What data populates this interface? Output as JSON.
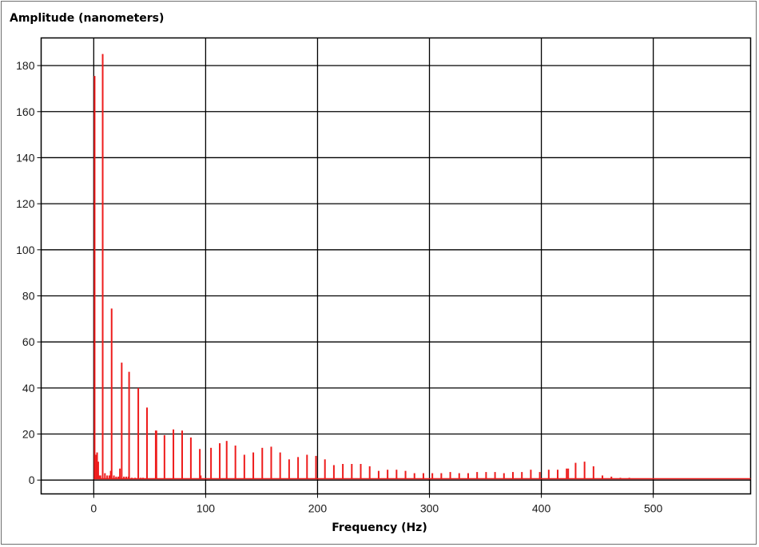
{
  "chart_data": {
    "type": "bar",
    "title": "",
    "xlabel": "Frequency (Hz)",
    "ylabel": "Amplitude (nanometers)",
    "xlim": [
      -47,
      587
    ],
    "ylim": [
      -6,
      192
    ],
    "x_ticks": [
      0,
      100,
      200,
      300,
      400,
      500
    ],
    "y_ticks": [
      0,
      20,
      40,
      60,
      80,
      100,
      120,
      140,
      160,
      180
    ],
    "grid": true,
    "color": "#ee1c1c",
    "baseline": 0.6,
    "series": [
      {
        "x": [
          0.8,
          2,
          3,
          4,
          5,
          6,
          8,
          10,
          12,
          14,
          15.2,
          16,
          18,
          20,
          22,
          23.4,
          25,
          27,
          29,
          31,
          31.6,
          34,
          37,
          39.8,
          42,
          44,
          47.6,
          55.4,
          56,
          63.2,
          71.2,
          79,
          86.8,
          94.8,
          95.6,
          104.8,
          112.6,
          118.8,
          126.6,
          134.6,
          142.6,
          150.6,
          158.6,
          166.6,
          174.6,
          182.6,
          190.6,
          198.6,
          206.6,
          214.6,
          222.6,
          230.6,
          238.6,
          246.6,
          254.6,
          262.6,
          270.6,
          278.6,
          286.6,
          294.6,
          302.6,
          310.6,
          318.6,
          326.6,
          334.6,
          342.6,
          350.6,
          358.6,
          366.6,
          374.6,
          382.6,
          390.6,
          398.6,
          406.6,
          414.6,
          422.6,
          424,
          430.6,
          438.6,
          446.6,
          454.6,
          462.6,
          470.6,
          478.6
        ],
        "values": [
          175.5,
          11,
          12,
          8,
          2,
          2,
          185,
          3,
          2,
          2,
          4,
          74.5,
          2,
          1.5,
          1.5,
          5,
          51,
          1.5,
          1.5,
          1.5,
          47,
          1,
          1,
          40,
          1,
          1,
          31.5,
          21.5,
          21.5,
          19.5,
          22,
          21.5,
          18.5,
          13.5,
          2,
          14,
          16,
          17,
          15,
          11,
          12,
          14,
          14.5,
          12,
          9,
          10,
          11,
          10.5,
          9,
          6.5,
          7,
          7,
          7,
          6,
          4,
          4.5,
          4.5,
          4,
          3,
          3,
          3,
          3,
          3.5,
          3,
          3,
          3.5,
          3.5,
          3.5,
          3,
          3.5,
          3.5,
          4.5,
          3.5,
          4.5,
          4.5,
          5,
          5,
          7.5,
          8,
          6,
          2,
          1.5,
          1,
          1
        ]
      }
    ]
  }
}
